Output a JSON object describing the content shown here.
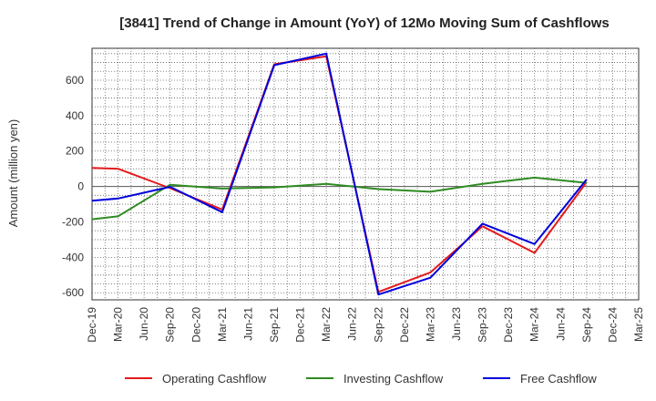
{
  "chart_data": {
    "type": "line",
    "title": "[3841]  Trend of Change in Amount (YoY) of 12Mo Moving Sum of Cashflows",
    "xlabel": "",
    "ylabel": "Amount (million yen)",
    "ylim": [
      -640,
      780
    ],
    "yticks": [
      -600,
      -400,
      -200,
      0,
      200,
      400,
      600
    ],
    "yticklabels": [
      "-600",
      "-400",
      "-200",
      "0",
      "200",
      "400",
      "600"
    ],
    "categories": [
      "Dec-19",
      "Mar-20",
      "Jun-20",
      "Sep-20",
      "Dec-20",
      "Mar-21",
      "Jun-21",
      "Sep-21",
      "Dec-21",
      "Mar-22",
      "Jun-22",
      "Sep-22",
      "Dec-22",
      "Mar-23",
      "Jun-23",
      "Sep-23",
      "Dec-23",
      "Mar-24",
      "Jun-24",
      "Sep-24",
      "Dec-24",
      "Mar-25"
    ],
    "series": [
      {
        "name": "Operating Cashflow",
        "color": "#e41a1c",
        "values": [
          105,
          100,
          null,
          -10,
          null,
          -130,
          null,
          690,
          null,
          735,
          null,
          -595,
          null,
          -485,
          null,
          -225,
          null,
          -375,
          null,
          25,
          null,
          null
        ]
      },
      {
        "name": "Investing Cashflow",
        "color": "#2e8b22",
        "values": [
          -185,
          -168,
          null,
          10,
          null,
          -12,
          null,
          -5,
          null,
          15,
          null,
          -15,
          null,
          -30,
          null,
          15,
          null,
          50,
          null,
          20,
          null,
          null
        ]
      },
      {
        "name": "Free Cashflow",
        "color": "#0000dd",
        "values": [
          -80,
          -68,
          null,
          -2,
          null,
          -145,
          null,
          685,
          null,
          750,
          null,
          -610,
          null,
          -515,
          null,
          -210,
          null,
          -325,
          null,
          40,
          null,
          null
        ]
      }
    ]
  }
}
